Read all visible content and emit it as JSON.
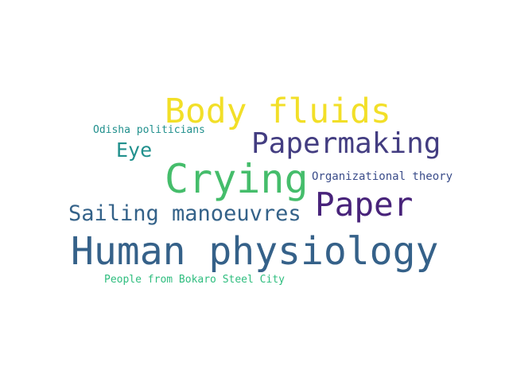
{
  "words": [
    {
      "id": "body-fluids",
      "text": "Body fluids",
      "color": "#f2df28"
    },
    {
      "id": "papermaking",
      "text": "Papermaking",
      "color": "#433d81"
    },
    {
      "id": "crying",
      "text": "Crying",
      "color": "#45bd6b"
    },
    {
      "id": "eye",
      "text": "Eye",
      "color": "#21908d"
    },
    {
      "id": "odisha",
      "text": "Odisha politicians",
      "color": "#21908d"
    },
    {
      "id": "org",
      "text": "Organizational theory",
      "color": "#3b4d8a"
    },
    {
      "id": "paper",
      "text": "Paper",
      "color": "#48237a"
    },
    {
      "id": "sailing",
      "text": "Sailing manoeuvres",
      "color": "#346289"
    },
    {
      "id": "human",
      "text": "Human physiology",
      "color": "#356189"
    },
    {
      "id": "bokaro",
      "text": "People from Bokaro Steel City",
      "color": "#2ebd7e"
    }
  ]
}
